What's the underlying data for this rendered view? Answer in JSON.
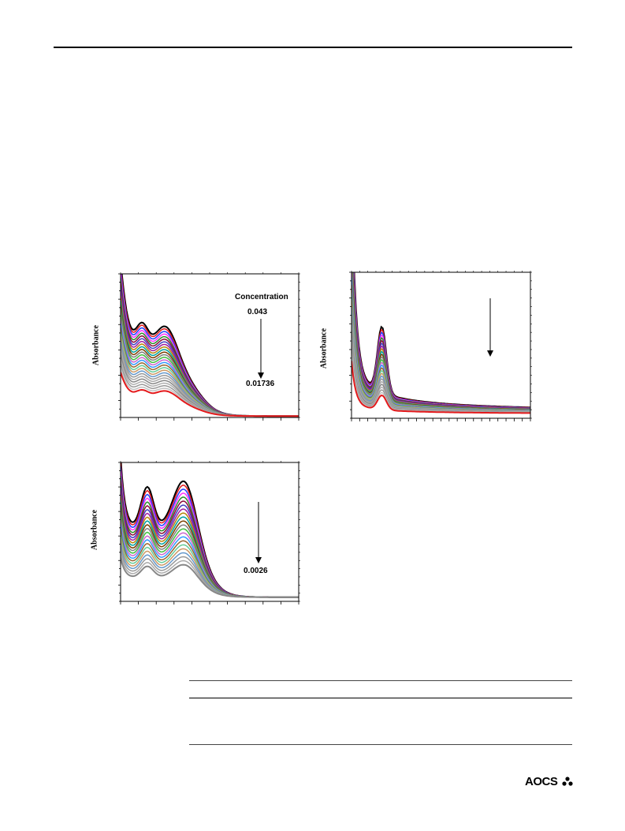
{
  "charts": [
    {
      "ylabel": "Absorbance",
      "annotations": {
        "title": "Concentration",
        "start": "0.043",
        "end": "0.01736"
      },
      "chart_data": {
        "type": "line",
        "ylabel": "Absorbance",
        "n_series": 26,
        "x_ticks": 11,
        "y_ticks": 18
      }
    },
    {
      "ylabel": "Absorbance",
      "annotations": {},
      "chart_data": {
        "type": "line",
        "ylabel": "Absorbance",
        "n_series": 26,
        "x_ticks": 23,
        "y_ticks": 18
      }
    },
    {
      "ylabel": "Absorbance",
      "annotations": {
        "end": "0.0026"
      },
      "chart_data": {
        "type": "line",
        "ylabel": "Absorbance",
        "n_series": 22,
        "x_ticks": 11,
        "y_ticks": 18
      }
    }
  ],
  "footer": {
    "logo_text": "AOCS"
  },
  "colors": {
    "series": [
      "#000000",
      "#e41a1c",
      "#1f3fff",
      "#ff33ff",
      "#2b8a2b",
      "#8b0a3a",
      "#4040c0",
      "#a020a0",
      "#b8860b",
      "#00a0a0",
      "#7b3f00",
      "#808080",
      "#3fbf3f",
      "#cc66cc",
      "#3399ff",
      "#996633",
      "#66cc99",
      "#cc9966",
      "#6699cc",
      "#999999",
      "#aaaaaa",
      "#888888",
      "#b0b0b0",
      "#9a9a9a",
      "#c0c0c0",
      "#e41a1c"
    ]
  }
}
